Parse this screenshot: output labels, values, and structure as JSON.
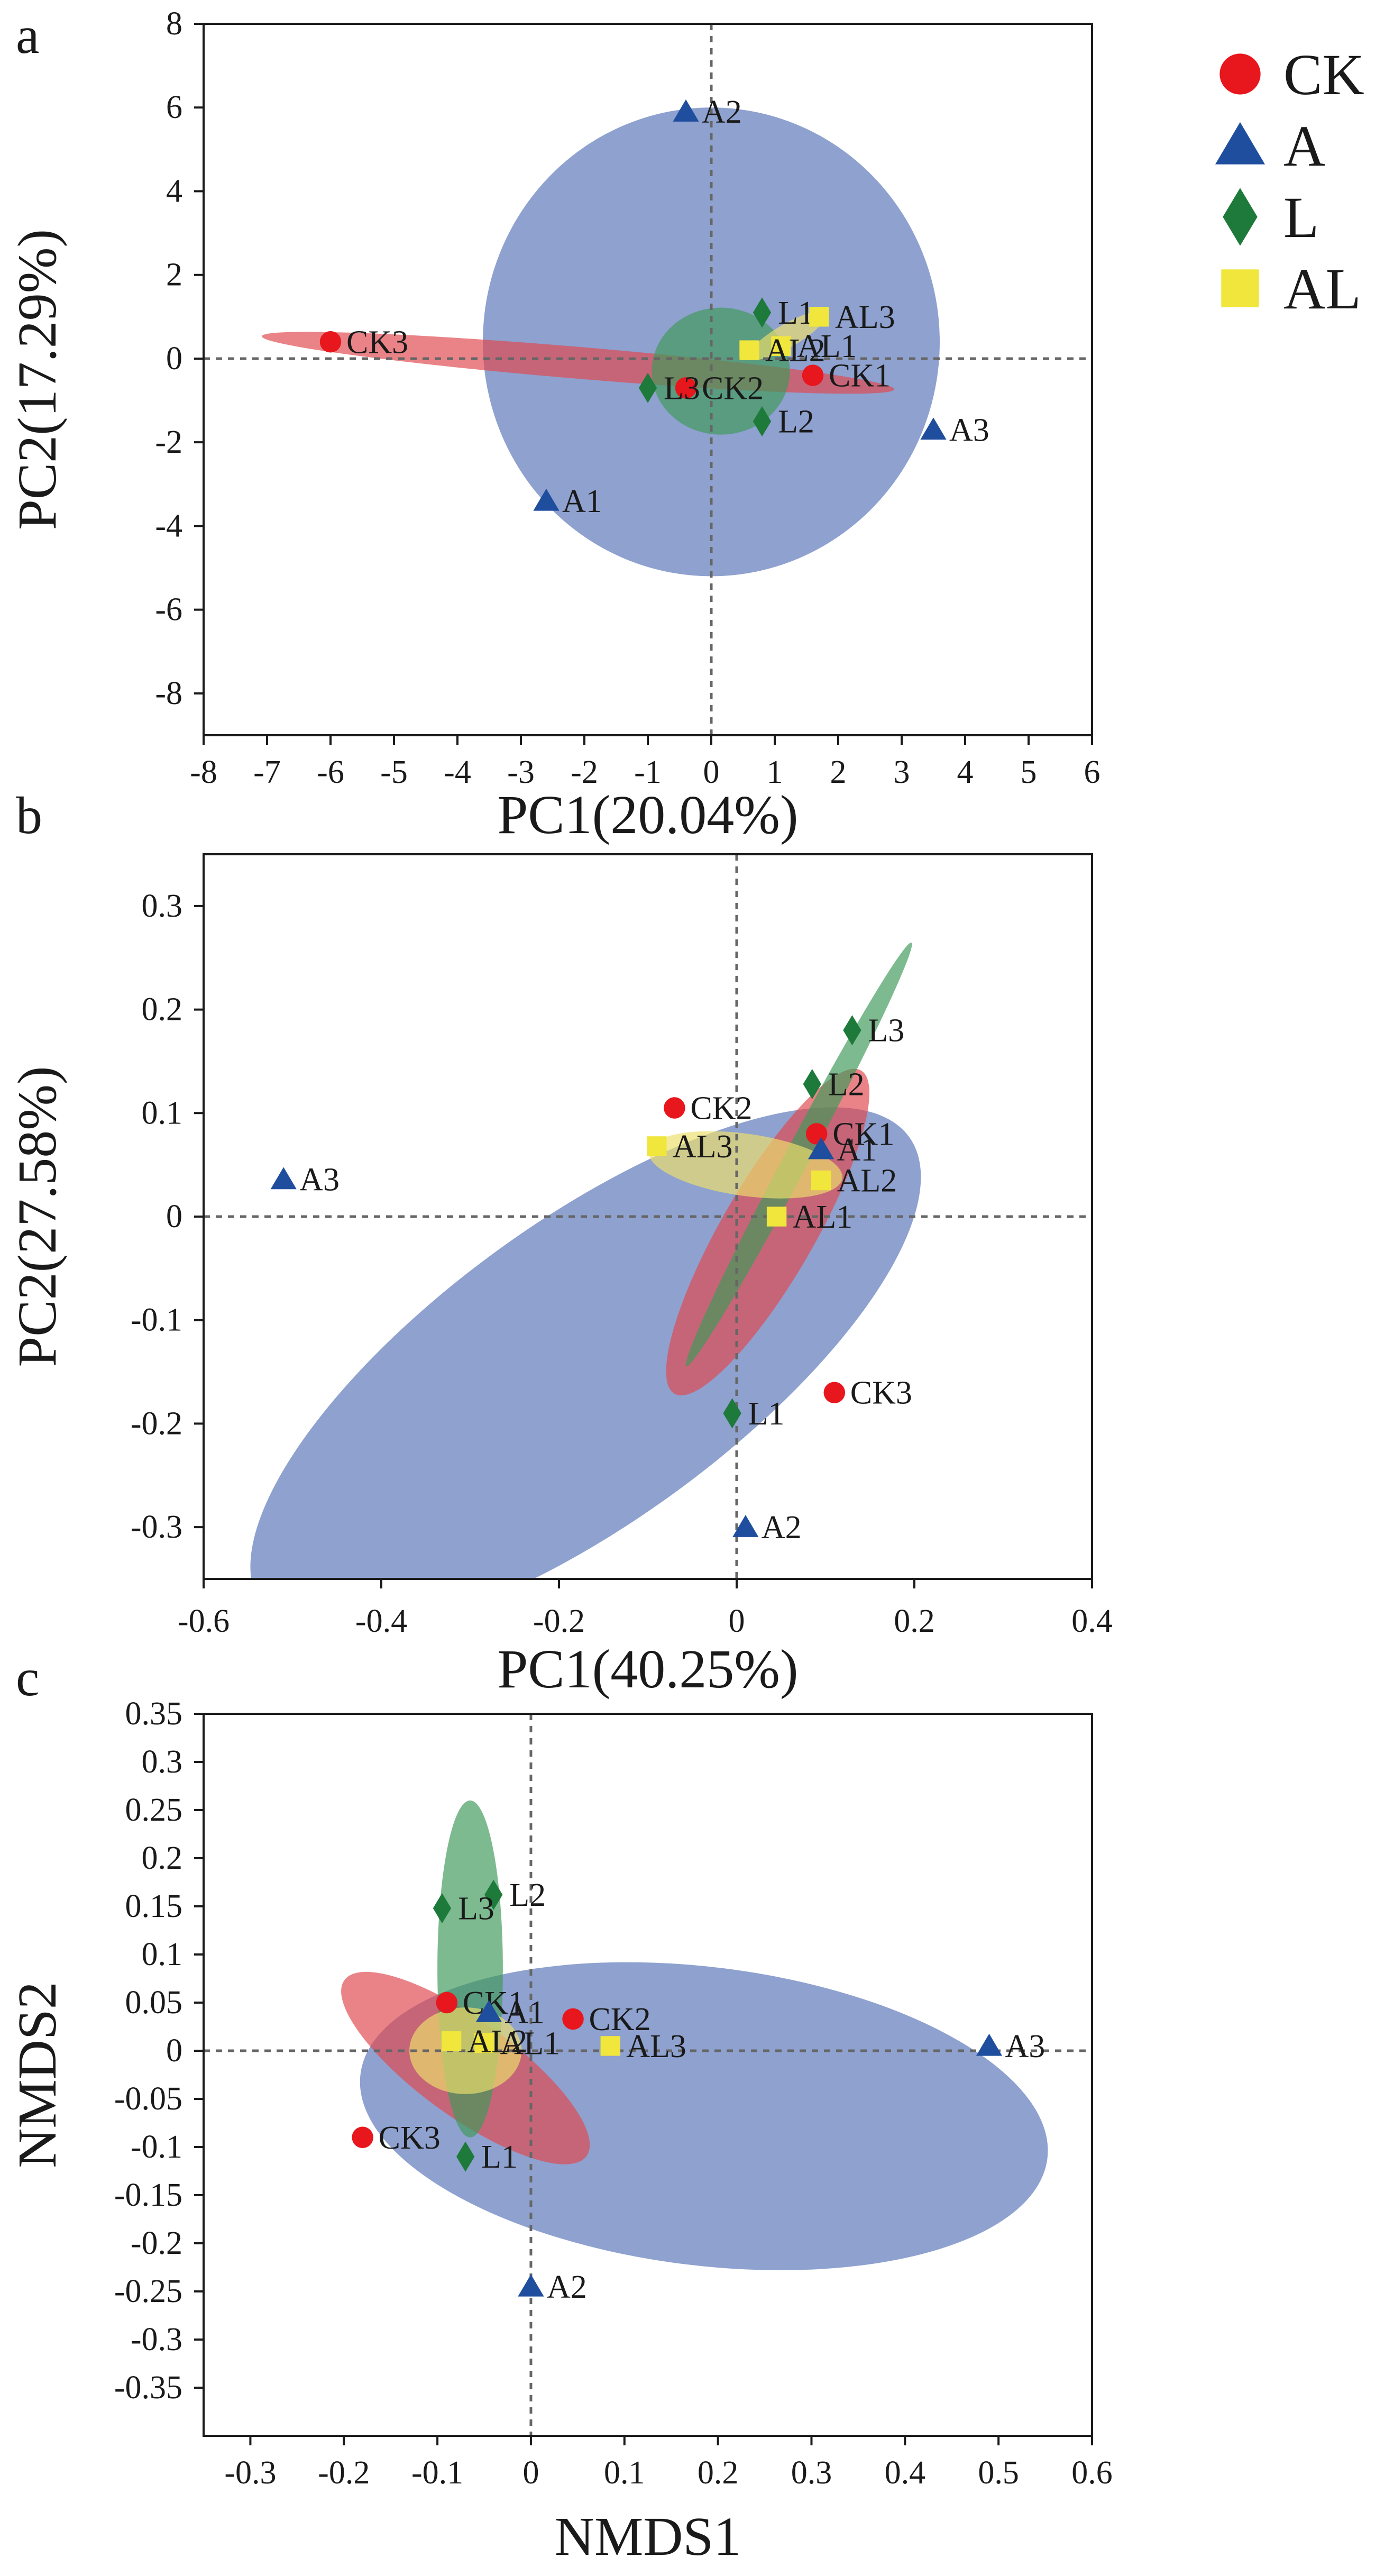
{
  "colors": {
    "CK": "#e8161d",
    "A": "#1f4e9e",
    "L": "#1e7a3a",
    "AL": "#f0e63c",
    "ellipse_CK": "#e0484e",
    "ellipse_A": "#5874b8",
    "ellipse_L": "#3f9a5a",
    "ellipse_AL": "#ecdf6c",
    "axis": "#1a1a1a",
    "zero_line": "#666666"
  },
  "legend": [
    {
      "group": "CK",
      "label": "CK",
      "marker": "circle"
    },
    {
      "group": "A",
      "label": "A",
      "marker": "triangle"
    },
    {
      "group": "L",
      "label": "L",
      "marker": "diamond"
    },
    {
      "group": "AL",
      "label": "AL",
      "marker": "square"
    }
  ],
  "chart_data": [
    {
      "panel": "a",
      "type": "scatter",
      "xlabel": "PC1(20.04%)",
      "ylabel": "PC2(17.29%)",
      "xlim": [
        -8,
        6
      ],
      "ylim": [
        -9,
        8
      ],
      "xticks": [
        -8,
        -7,
        -6,
        -5,
        -4,
        -3,
        -2,
        -1,
        0,
        1,
        2,
        3,
        4,
        5,
        6
      ],
      "yticks": [
        -8,
        -6,
        -4,
        -2,
        0,
        2,
        4,
        6,
        8
      ],
      "points": [
        {
          "label": "CK1",
          "group": "CK",
          "x": 1.6,
          "y": -0.4
        },
        {
          "label": "CK2",
          "group": "CK",
          "x": -0.4,
          "y": -0.7
        },
        {
          "label": "CK3",
          "group": "CK",
          "x": -6.0,
          "y": 0.4
        },
        {
          "label": "A1",
          "group": "A",
          "x": -2.6,
          "y": -3.4
        },
        {
          "label": "A2",
          "group": "A",
          "x": -0.4,
          "y": 5.9
        },
        {
          "label": "A3",
          "group": "A",
          "x": 3.5,
          "y": -1.7
        },
        {
          "label": "L1",
          "group": "L",
          "x": 0.8,
          "y": 1.1
        },
        {
          "label": "L2",
          "group": "L",
          "x": 0.8,
          "y": -1.5
        },
        {
          "label": "L3",
          "group": "L",
          "x": -1.0,
          "y": -0.7
        },
        {
          "label": "AL1",
          "group": "AL",
          "x": 1.1,
          "y": 0.3
        },
        {
          "label": "AL2",
          "group": "AL",
          "x": 0.6,
          "y": 0.2
        },
        {
          "label": "AL3",
          "group": "AL",
          "x": 1.7,
          "y": 1.0
        }
      ],
      "ellipses": [
        {
          "group": "A",
          "cx": 0.0,
          "cy": 0.4,
          "rx": 3.6,
          "ry": 5.6,
          "angle": 0
        },
        {
          "group": "CK",
          "cx": -2.1,
          "cy": -0.1,
          "rx": 5.0,
          "ry": 0.38,
          "angle": -4.8
        },
        {
          "group": "L",
          "cx": 0.15,
          "cy": -0.3,
          "rx": 1.0,
          "ry": 1.65,
          "angle": 90
        },
        {
          "group": "AL",
          "cx": 1.2,
          "cy": 0.55,
          "rx": 0.7,
          "ry": 0.28,
          "angle": 30
        }
      ]
    },
    {
      "panel": "b",
      "type": "scatter",
      "xlabel": "PC1(40.25%)",
      "ylabel": "PC2(27.58%)",
      "xlim": [
        -0.6,
        0.4
      ],
      "ylim": [
        -0.35,
        0.35
      ],
      "xticks": [
        -0.6,
        -0.4,
        -0.2,
        0,
        0.2,
        0.4
      ],
      "yticks": [
        -0.3,
        -0.2,
        -0.1,
        0,
        0.1,
        0.2,
        0.3
      ],
      "points": [
        {
          "label": "CK1",
          "group": "CK",
          "x": 0.09,
          "y": 0.08
        },
        {
          "label": "CK2",
          "group": "CK",
          "x": -0.07,
          "y": 0.105
        },
        {
          "label": "CK3",
          "group": "CK",
          "x": 0.11,
          "y": -0.17
        },
        {
          "label": "A1",
          "group": "A",
          "x": 0.095,
          "y": 0.065
        },
        {
          "label": "A2",
          "group": "A",
          "x": 0.01,
          "y": -0.3
        },
        {
          "label": "A3",
          "group": "A",
          "x": -0.51,
          "y": 0.036
        },
        {
          "label": "L1",
          "group": "L",
          "x": -0.005,
          "y": -0.19
        },
        {
          "label": "L2",
          "group": "L",
          "x": 0.085,
          "y": 0.128
        },
        {
          "label": "L3",
          "group": "L",
          "x": 0.13,
          "y": 0.18
        },
        {
          "label": "AL1",
          "group": "AL",
          "x": 0.045,
          "y": 0.0
        },
        {
          "label": "AL2",
          "group": "AL",
          "x": 0.095,
          "y": 0.035
        },
        {
          "label": "AL3",
          "group": "AL",
          "x": -0.09,
          "y": 0.068
        }
      ],
      "ellipses": [
        {
          "group": "A",
          "cx": -0.17,
          "cy": -0.15,
          "rx": 0.45,
          "ry": 0.145,
          "angle": 36
        },
        {
          "group": "CK",
          "cx": 0.035,
          "cy": -0.015,
          "rx": 0.21,
          "ry": 0.045,
          "angle": 60
        },
        {
          "group": "L",
          "cx": 0.07,
          "cy": 0.06,
          "rx": 0.27,
          "ry": 0.012,
          "angle": 62
        },
        {
          "group": "AL",
          "cx": 0.01,
          "cy": 0.05,
          "rx": 0.11,
          "ry": 0.03,
          "angle": -8
        }
      ]
    },
    {
      "panel": "c",
      "type": "scatter",
      "xlabel": "NMDS1",
      "ylabel": "NMDS2",
      "xlim": [
        -0.35,
        0.6
      ],
      "ylim": [
        -0.4,
        0.35
      ],
      "xticks": [
        -0.3,
        -0.2,
        -0.1,
        0,
        0.1,
        0.2,
        0.3,
        0.4,
        0.5,
        0.6
      ],
      "yticks": [
        -0.35,
        -0.3,
        -0.25,
        -0.2,
        -0.15,
        -0.1,
        -0.05,
        0,
        0.05,
        0.1,
        0.15,
        0.2,
        0.25,
        0.3,
        0.35
      ],
      "points": [
        {
          "label": "CK1",
          "group": "CK",
          "x": -0.09,
          "y": 0.05
        },
        {
          "label": "CK2",
          "group": "CK",
          "x": 0.045,
          "y": 0.033
        },
        {
          "label": "CK3",
          "group": "CK",
          "x": -0.18,
          "y": -0.09
        },
        {
          "label": "A1",
          "group": "A",
          "x": -0.045,
          "y": 0.04
        },
        {
          "label": "A2",
          "group": "A",
          "x": 0.0,
          "y": -0.245
        },
        {
          "label": "A3",
          "group": "A",
          "x": 0.49,
          "y": 0.005
        },
        {
          "label": "L1",
          "group": "L",
          "x": -0.07,
          "y": -0.11
        },
        {
          "label": "L2",
          "group": "L",
          "x": -0.04,
          "y": 0.162
        },
        {
          "label": "L3",
          "group": "L",
          "x": -0.095,
          "y": 0.148
        },
        {
          "label": "AL1",
          "group": "AL",
          "x": -0.05,
          "y": 0.008
        },
        {
          "label": "AL2",
          "group": "AL",
          "x": -0.085,
          "y": 0.01
        },
        {
          "label": "AL3",
          "group": "AL",
          "x": 0.085,
          "y": 0.005
        }
      ],
      "ellipses": [
        {
          "group": "A",
          "cx": 0.185,
          "cy": -0.068,
          "rx": 0.37,
          "ry": 0.155,
          "angle": -7
        },
        {
          "group": "CK",
          "cx": -0.07,
          "cy": -0.018,
          "rx": 0.16,
          "ry": 0.05,
          "angle": -36
        },
        {
          "group": "L",
          "cx": -0.065,
          "cy": 0.085,
          "rx": 0.035,
          "ry": 0.175,
          "angle": 0
        },
        {
          "group": "AL",
          "cx": -0.07,
          "cy": 0.0,
          "rx": 0.06,
          "ry": 0.045,
          "angle": 0
        }
      ]
    }
  ]
}
